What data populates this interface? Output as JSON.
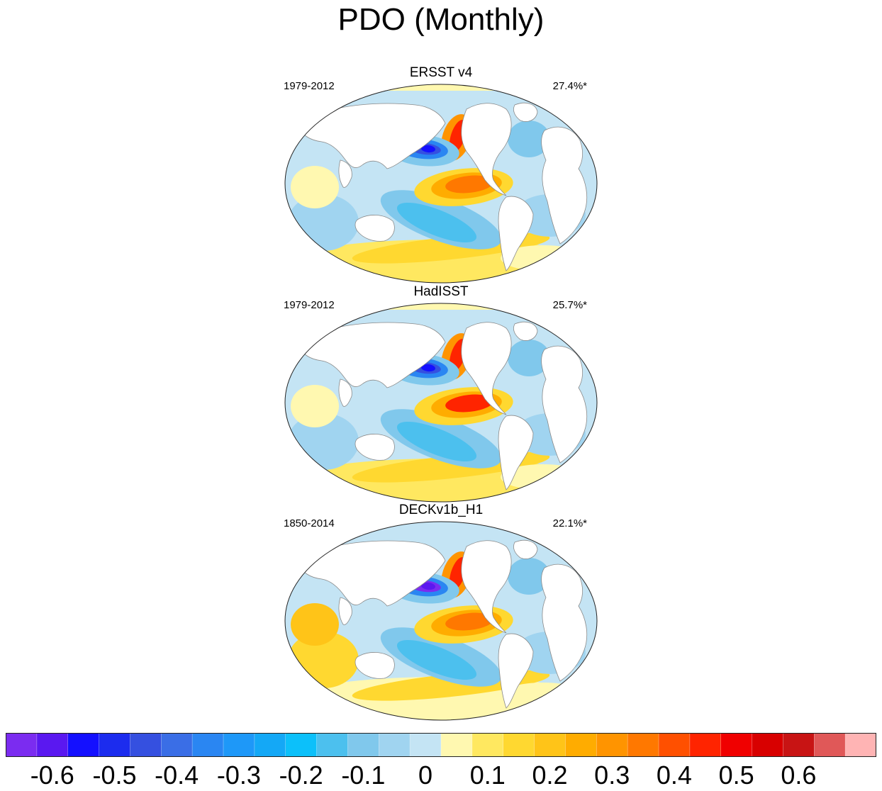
{
  "title": "PDO (Monthly)",
  "panels": [
    {
      "name": "ERSST v4",
      "period": "1979-2012",
      "variance": "27.4%*"
    },
    {
      "name": "HadISST",
      "period": "1979-2012",
      "variance": "25.7%*"
    },
    {
      "name": "DECKv1b_H1",
      "period": "1850-2014",
      "variance": "22.1%*"
    }
  ],
  "colorbar": {
    "colors": [
      "#7b2cf0",
      "#5a18f0",
      "#1410ff",
      "#1c2cee",
      "#3550e0",
      "#3a6ee6",
      "#2a86f2",
      "#1e98f8",
      "#14a8f6",
      "#0cc0fa",
      "#4cc0ee",
      "#80c8ec",
      "#a0d4f0",
      "#c4e4f4",
      "#fff8b0",
      "#ffe860",
      "#ffd830",
      "#ffc418",
      "#ffac00",
      "#ff9400",
      "#ff7800",
      "#ff5000",
      "#ff2400",
      "#f00000",
      "#d80000",
      "#c81414",
      "#e05858",
      "#ffb4b4"
    ],
    "ticks": [
      {
        "label": "-0.6",
        "value": -0.6
      },
      {
        "label": "-0.5",
        "value": -0.5
      },
      {
        "label": "-0.4",
        "value": -0.4
      },
      {
        "label": "-0.3",
        "value": -0.3
      },
      {
        "label": "-0.2",
        "value": -0.2
      },
      {
        "label": "-0.1",
        "value": -0.1
      },
      {
        "label": "0",
        "value": 0
      },
      {
        "label": "0.1",
        "value": 0.1
      },
      {
        "label": "0.2",
        "value": 0.2
      },
      {
        "label": "0.3",
        "value": 0.3
      },
      {
        "label": "0.4",
        "value": 0.4
      },
      {
        "label": "0.5",
        "value": 0.5
      },
      {
        "label": "0.6",
        "value": 0.6
      }
    ]
  }
}
